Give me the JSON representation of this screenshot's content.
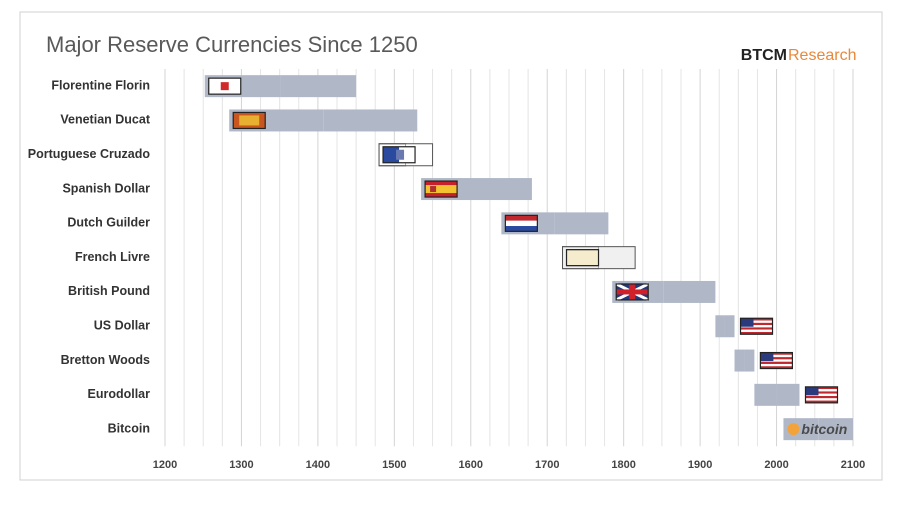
{
  "chart_data": {
    "type": "floating-bar",
    "title": "Major Reserve Currencies Since 1250",
    "brand": "BTCM",
    "brand_suffix": "Research",
    "categories": [
      "Florentine Florin",
      "Venetian Ducat",
      "Portuguese Cruzado",
      "Spanish Dollar",
      "Dutch Guilder",
      "French Livre",
      "British Pound",
      "US Dollar",
      "Bretton Woods",
      "Eurodollar",
      "Bitcoin"
    ],
    "starts": [
      1252,
      1284,
      1480,
      1535,
      1640,
      1720,
      1785,
      1920,
      1945,
      1971,
      2009
    ],
    "ends": [
      1450,
      1530,
      1550,
      1680,
      1780,
      1815,
      1920,
      1945,
      1971,
      2030,
      2100
    ],
    "colors": [
      "#b0b8c8",
      "#b0b8c8",
      "#ffffff",
      "#b0b8c8",
      "#b0b8c8",
      "#f0f0f0",
      "#b0b8c8",
      "#b0b8c8",
      "#b0b8c8",
      "#b0b8c8",
      "#b0b8c8"
    ],
    "bitcoin_logo": "bitcoin",
    "xlim": [
      1200,
      2100
    ],
    "xticks": [
      1200,
      1300,
      1400,
      1500,
      1600,
      1700,
      1800,
      1900,
      2000,
      2100
    ],
    "minor_xticks": [
      1225,
      1250,
      1275,
      1325,
      1350,
      1375,
      1425,
      1450,
      1475,
      1525,
      1550,
      1575,
      1625,
      1650,
      1675,
      1725,
      1750,
      1775,
      1825,
      1850,
      1875,
      1925,
      1950,
      1975,
      2025,
      2050,
      2075
    ],
    "grid": true
  }
}
